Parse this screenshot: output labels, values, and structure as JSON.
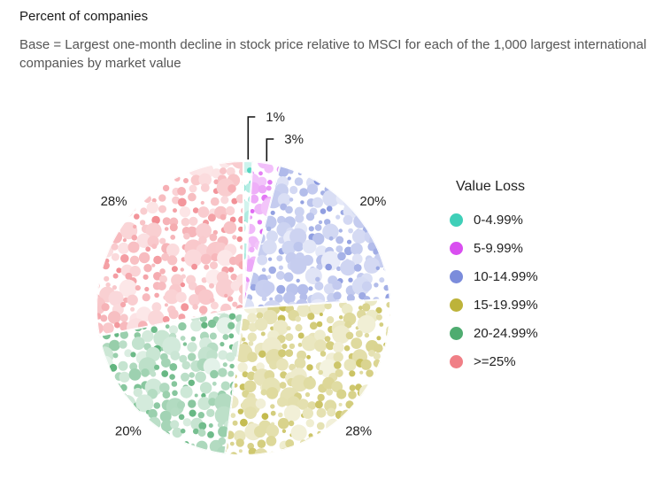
{
  "header": {
    "title": "Percent of companies",
    "subtitle": "Base = Largest one-month decline in stock price relative to MSCI for each of the 1,000 largest international companies by market value"
  },
  "chart_data": {
    "type": "pie",
    "title": "Percent of companies",
    "subtitle": "Base = Largest one-month decline in stock price relative to MSCI for each of the 1,000 largest international companies by market value",
    "legend_title": "Value Loss",
    "legend_position": "right",
    "categories": [
      "0-4.99%",
      "5-9.99%",
      "10-14.99%",
      "15-19.99%",
      "20-24.99%",
      ">=25%"
    ],
    "values": [
      1,
      3,
      20,
      28,
      20,
      28
    ],
    "data_labels": [
      "1%",
      "3%",
      "20%",
      "28%",
      "20%",
      "28%"
    ],
    "colors": [
      "#3fcfb8",
      "#d94ef0",
      "#7b8cdb",
      "#bdb33a",
      "#4fac70",
      "#f07f86"
    ]
  }
}
